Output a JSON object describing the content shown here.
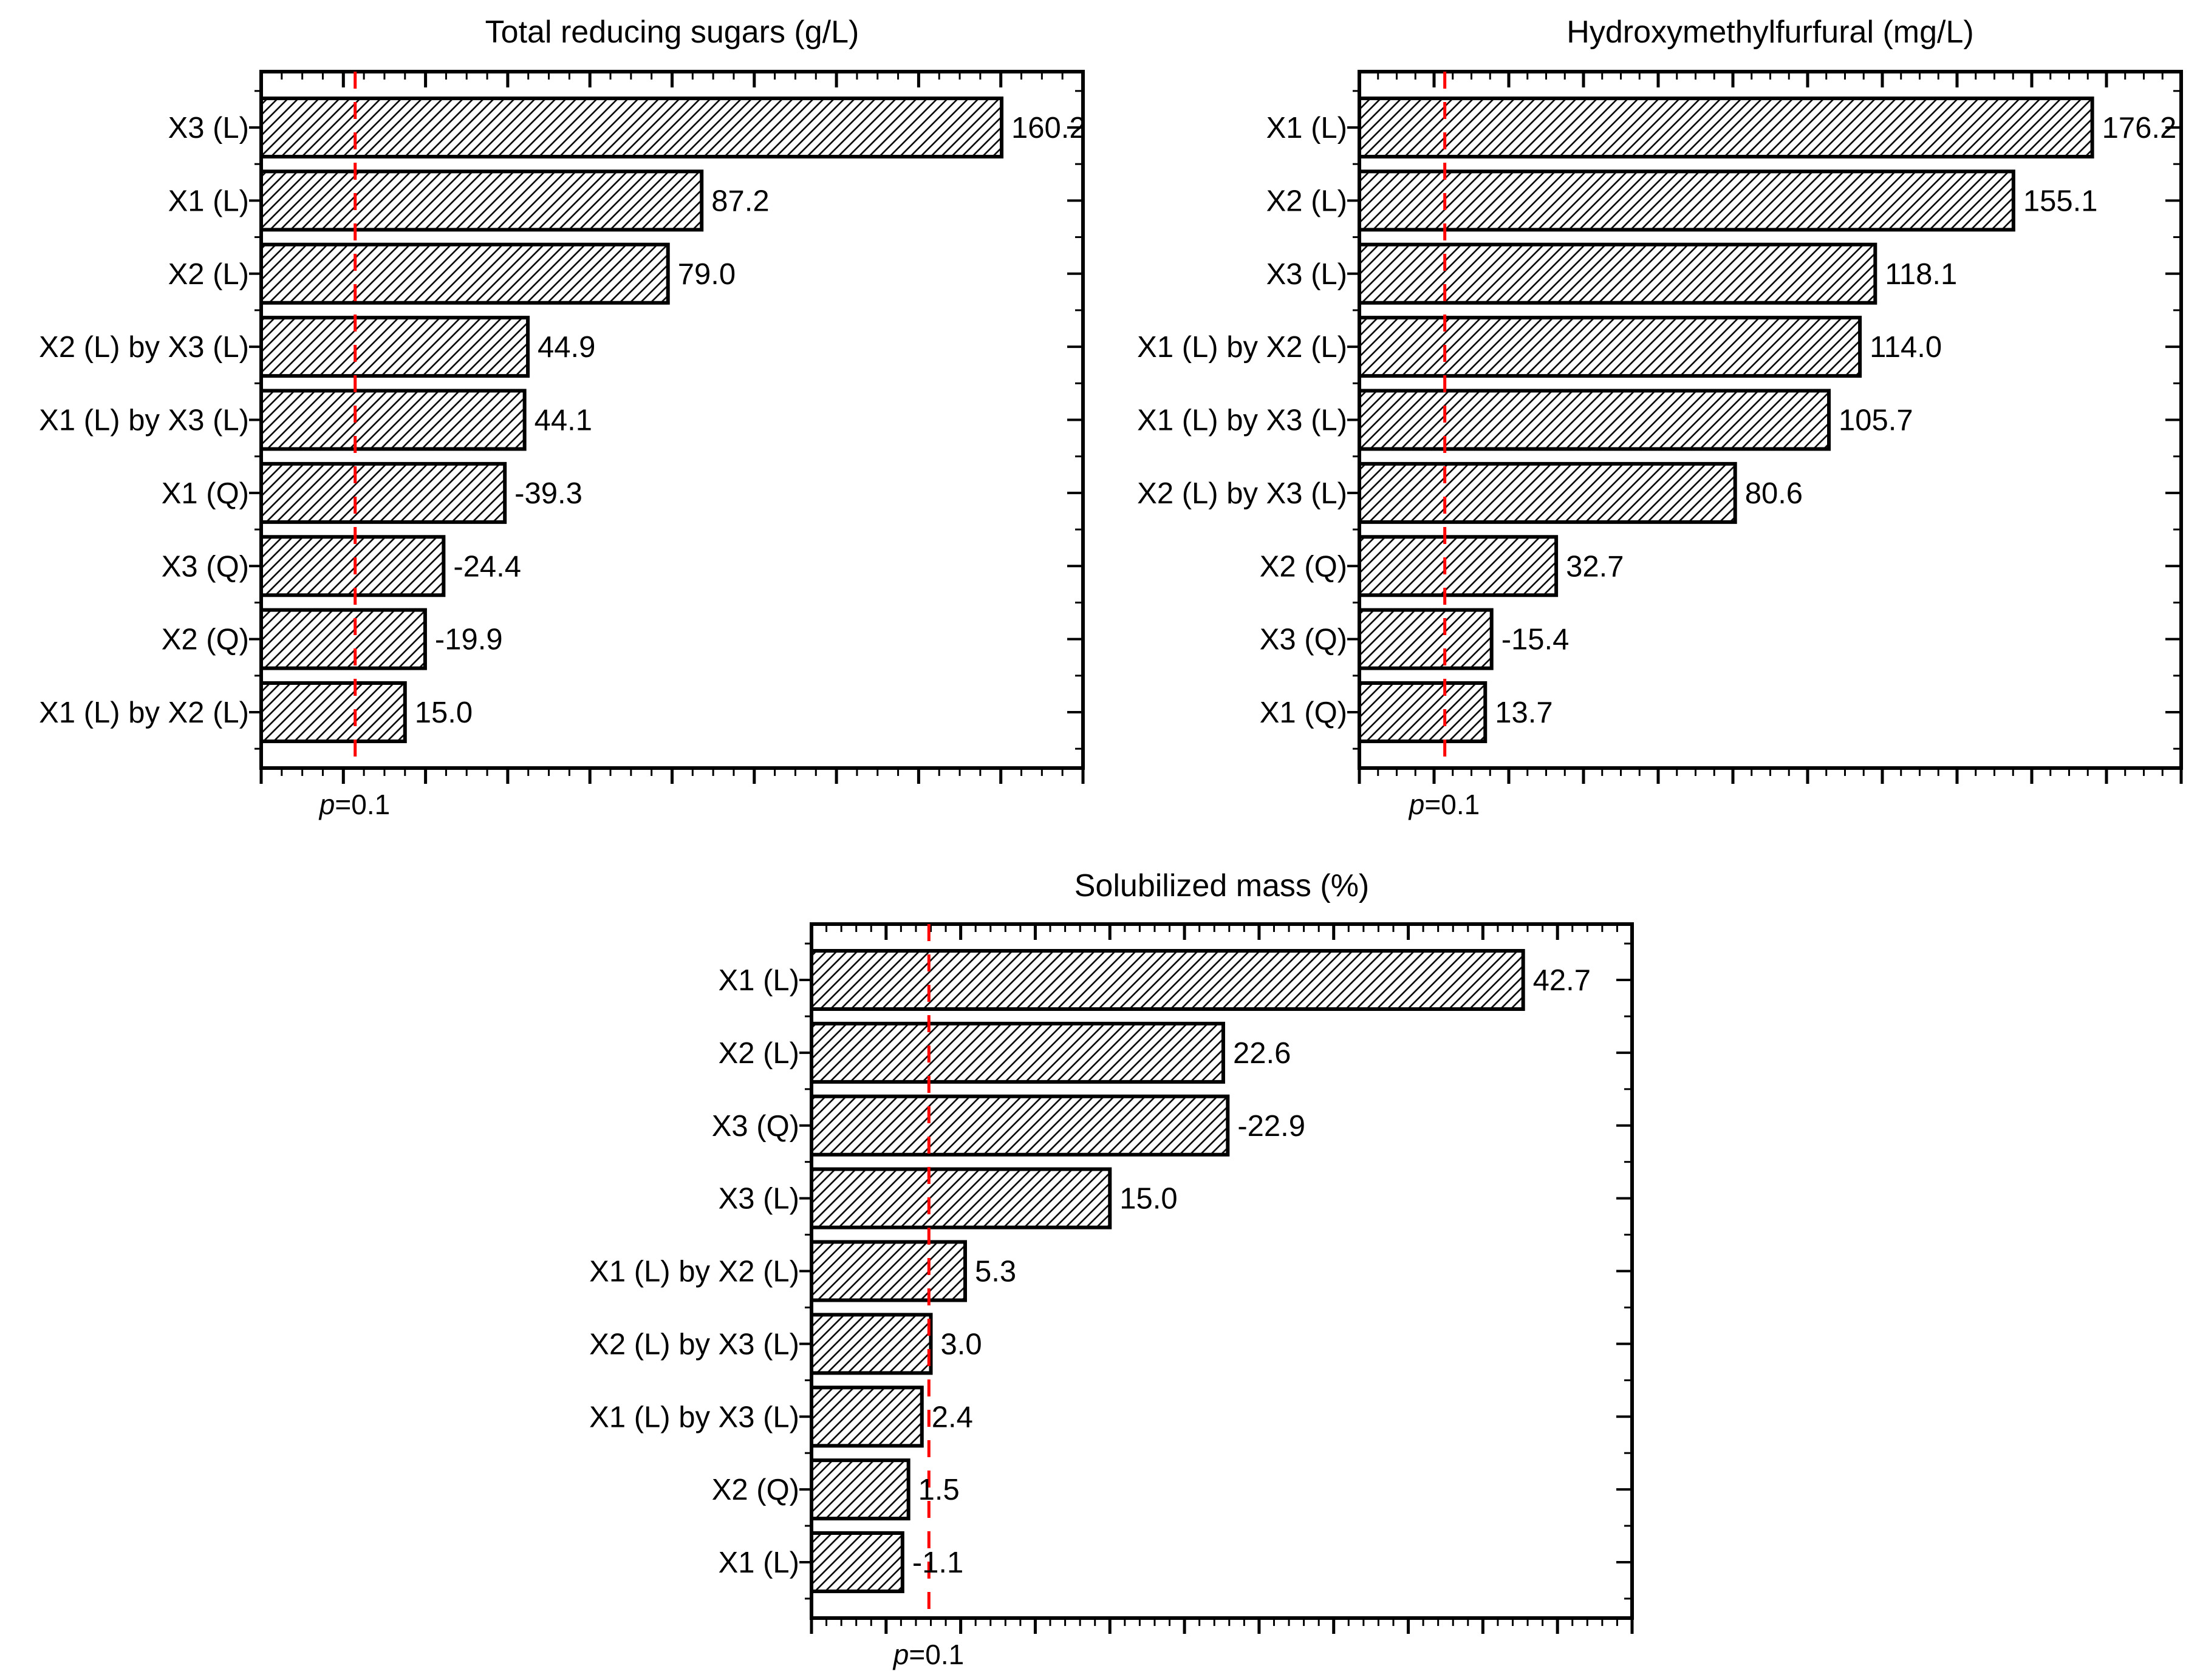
{
  "figure": {
    "background": "#ffffff",
    "description": "Three Pareto charts of standardized effects with p=0.1 significance line"
  },
  "colors": {
    "background": "#ffffff",
    "bar_fill": "#ffffff",
    "bar_hatch": "#000000",
    "bar_stroke": "#000000",
    "frame": "#000000",
    "threshold_line": "#fe0000",
    "text": "#000000"
  },
  "chart_data": [
    {
      "id": "trs",
      "type": "bar",
      "orientation": "horizontal",
      "title": "Total reducing sugars (g/L)",
      "p_label": {
        "prefix": "p",
        "suffix": "=0.1"
      },
      "threshold": 2.87,
      "axis": {
        "min": -20,
        "max": 180,
        "major": 20,
        "minor": 5
      },
      "grid": false,
      "legend": false,
      "bars": [
        {
          "label": "X3 (L)",
          "value": 160.2,
          "display": "160.2"
        },
        {
          "label": "X1 (L)",
          "value": 87.2,
          "display": "87.2"
        },
        {
          "label": "X2 (L)",
          "value": 79.0,
          "display": "79.0"
        },
        {
          "label": "X2 (L) by X3 (L)",
          "value": 44.9,
          "display": "44.9"
        },
        {
          "label": "X1 (L) by X3 (L)",
          "value": 44.1,
          "display": "44.1"
        },
        {
          "label": "X1 (Q)",
          "value": -39.3,
          "display": "-39.3"
        },
        {
          "label": "X3 (Q)",
          "value": -24.4,
          "display": "-24.4"
        },
        {
          "label": "X2 (Q)",
          "value": -19.9,
          "display": "-19.9"
        },
        {
          "label": "X1 (L) by X2 (L)",
          "value": 15.0,
          "display": "15.0"
        }
      ]
    },
    {
      "id": "hmf",
      "type": "bar",
      "orientation": "horizontal",
      "title": "Hydroxymethylfurfural (mg/L)",
      "p_label": {
        "prefix": "p",
        "suffix": "=0.1"
      },
      "threshold": 2.87,
      "axis": {
        "min": -20,
        "max": 200,
        "major": 20,
        "minor": 5
      },
      "grid": false,
      "legend": false,
      "bars": [
        {
          "label": "X1 (L)",
          "value": 176.2,
          "display": "176.2"
        },
        {
          "label": "X2 (L)",
          "value": 155.1,
          "display": "155.1"
        },
        {
          "label": "X3 (L)",
          "value": 118.1,
          "display": "118.1"
        },
        {
          "label": "X1 (L) by X2 (L)",
          "value": 114.0,
          "display": "114.0"
        },
        {
          "label": "X1 (L) by X3 (L)",
          "value": 105.7,
          "display": "105.7"
        },
        {
          "label": "X2 (L) by X3 (L)",
          "value": 80.6,
          "display": "80.6"
        },
        {
          "label": "X2 (Q)",
          "value": 32.7,
          "display": "32.7"
        },
        {
          "label": "X3 (Q)",
          "value": -15.4,
          "display": "-15.4"
        },
        {
          "label": "X1 (Q)",
          "value": 13.7,
          "display": "13.7"
        }
      ]
    },
    {
      "id": "sm",
      "type": "bar",
      "orientation": "horizontal",
      "title": "Solubilized mass (%)",
      "p_label": {
        "prefix": "p",
        "suffix": "=0.1"
      },
      "threshold": 2.87,
      "axis": {
        "min": -5,
        "max": 50,
        "major": 5,
        "minor": 1
      },
      "grid": false,
      "legend": false,
      "bars": [
        {
          "label": "X1 (L)",
          "value": 42.7,
          "display": "42.7"
        },
        {
          "label": "X2 (L)",
          "value": 22.6,
          "display": "22.6"
        },
        {
          "label": "X3 (Q)",
          "value": -22.9,
          "display": "-22.9"
        },
        {
          "label": "X3 (L)",
          "value": 15.0,
          "display": "15.0"
        },
        {
          "label": "X1 (L) by X2 (L)",
          "value": 5.3,
          "display": "5.3"
        },
        {
          "label": "X2 (L) by X3 (L)",
          "value": 3.0,
          "display": "3.0"
        },
        {
          "label": "X1 (L) by X3 (L)",
          "value": 2.4,
          "display": "2.4"
        },
        {
          "label": "X2 (Q)",
          "value": 1.5,
          "display": "1.5"
        },
        {
          "label": "X1 (L)",
          "value": -1.1,
          "display": "-1.1"
        }
      ]
    }
  ]
}
